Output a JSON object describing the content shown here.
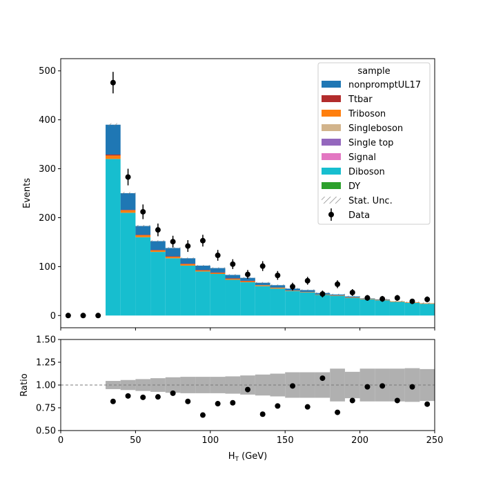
{
  "chart_data": [
    {
      "type": "bar",
      "stacked": true,
      "panel": "main",
      "xlabel": "",
      "ylabel": "Events",
      "xlim": [
        0,
        250
      ],
      "ylim": [
        -25,
        525
      ],
      "yticks": [
        0,
        100,
        200,
        300,
        400,
        500
      ],
      "xticks": [
        0,
        50,
        100,
        150,
        200,
        250
      ],
      "bin_edges": [
        30,
        40,
        50,
        60,
        70,
        80,
        90,
        100,
        110,
        120,
        130,
        140,
        150,
        160,
        170,
        180,
        190,
        200,
        210,
        220,
        230,
        240,
        250
      ],
      "legend": {
        "title": "sample",
        "placement": "top-right"
      },
      "series": [
        {
          "name": "DY",
          "color": "#2ca02c",
          "values": [
            0,
            0,
            0,
            0,
            0,
            0,
            0,
            0,
            0,
            0,
            0,
            0,
            0,
            0,
            0,
            0,
            0,
            0,
            0,
            0,
            0,
            0
          ]
        },
        {
          "name": "Diboson",
          "color": "#17becf",
          "values": [
            320,
            210,
            160,
            130,
            117,
            102,
            90,
            85,
            73,
            68,
            60,
            55,
            50,
            47,
            42,
            40,
            36,
            33,
            31,
            28,
            26,
            24
          ]
        },
        {
          "name": "Signal",
          "color": "#e377c2",
          "values": [
            0,
            0,
            0,
            0,
            0,
            0,
            0,
            0,
            0,
            0,
            0,
            0,
            0,
            0,
            0,
            0,
            0,
            0,
            0,
            0,
            0,
            0
          ]
        },
        {
          "name": "Single top",
          "color": "#9467bd",
          "values": [
            0,
            0,
            0,
            0,
            0,
            0,
            0,
            0,
            0,
            0,
            0,
            0,
            0,
            0,
            0,
            0,
            0,
            0,
            0,
            0,
            0,
            0
          ]
        },
        {
          "name": "Singleboson",
          "color": "#d2b48c",
          "values": [
            0,
            0,
            0,
            0,
            0,
            0,
            0,
            0,
            0,
            0,
            0,
            0,
            0,
            0,
            0,
            0,
            0,
            0,
            0,
            0,
            0,
            0
          ]
        },
        {
          "name": "Triboson",
          "color": "#ff7f0e",
          "values": [
            7,
            5,
            4,
            3,
            3,
            3,
            2,
            2,
            2,
            2,
            2,
            2,
            1,
            1,
            1,
            1,
            1,
            1,
            1,
            1,
            1,
            1
          ]
        },
        {
          "name": "Ttbar",
          "color": "#b22c2c",
          "values": [
            2,
            1,
            1,
            1,
            1,
            1,
            1,
            1,
            1,
            1,
            0,
            0,
            0,
            0,
            0,
            0,
            0,
            0,
            0,
            0,
            0,
            0
          ]
        },
        {
          "name": "nonpromptUL17",
          "color": "#1f77b4",
          "values": [
            61,
            34,
            18,
            18,
            17,
            11,
            9,
            9,
            7,
            6,
            5,
            5,
            4,
            4,
            3,
            2,
            2,
            1,
            1,
            0,
            0,
            0
          ]
        }
      ],
      "totals": [
        390,
        250,
        183,
        152,
        138,
        117,
        102,
        97,
        83,
        77,
        67,
        62,
        55,
        52,
        46,
        43,
        39,
        35,
        33,
        29,
        27,
        25
      ],
      "stat_unc_label": "Stat. Unc.",
      "data": {
        "name": "Data",
        "x": [
          5,
          15,
          25,
          35,
          45,
          55,
          65,
          75,
          85,
          95,
          105,
          115,
          125,
          135,
          145,
          155,
          165,
          175,
          185,
          195,
          205,
          215,
          225,
          235,
          245
        ],
        "y": [
          0,
          0,
          0,
          476,
          283,
          212,
          175,
          151,
          142,
          153,
          123,
          105,
          84,
          101,
          82,
          59,
          71,
          44,
          64,
          47,
          36,
          34,
          36,
          29,
          33
        ],
        "err": [
          0,
          0,
          0,
          22,
          17,
          15,
          13,
          12,
          12,
          12,
          11,
          10,
          9,
          10,
          9,
          8,
          8,
          7,
          8,
          7,
          6,
          6,
          6,
          5,
          6
        ]
      }
    },
    {
      "type": "scatter",
      "panel": "ratio",
      "xlabel": "H$_T$ (GeV)",
      "ylabel": "Ratio",
      "xlim": [
        0,
        250
      ],
      "ylim": [
        0.5,
        1.5
      ],
      "yticks": [
        0.5,
        0.75,
        1.0,
        1.25,
        1.5
      ],
      "xticks": [
        0,
        50,
        100,
        150,
        200,
        250
      ],
      "reference_line": 1.0,
      "unc_band": {
        "bin_edges": [
          30,
          40,
          50,
          60,
          70,
          80,
          90,
          100,
          110,
          120,
          130,
          140,
          150,
          160,
          170,
          180,
          190,
          200,
          210,
          220,
          230,
          240,
          250
        ],
        "low": [
          0.955,
          0.945,
          0.935,
          0.925,
          0.915,
          0.91,
          0.91,
          0.91,
          0.905,
          0.895,
          0.885,
          0.875,
          0.86,
          0.86,
          0.86,
          0.82,
          0.855,
          0.82,
          0.82,
          0.82,
          0.815,
          0.825
        ],
        "high": [
          1.045,
          1.055,
          1.065,
          1.075,
          1.085,
          1.09,
          1.09,
          1.09,
          1.095,
          1.105,
          1.115,
          1.125,
          1.14,
          1.14,
          1.14,
          1.18,
          1.145,
          1.18,
          1.18,
          1.18,
          1.185,
          1.175
        ]
      },
      "x": [
        35,
        45,
        55,
        65,
        75,
        85,
        95,
        105,
        115,
        125,
        135,
        145,
        155,
        165,
        175,
        185,
        195,
        205,
        215,
        225,
        235,
        245
      ],
      "y": [
        0.82,
        0.88,
        0.865,
        0.87,
        0.91,
        0.82,
        0.67,
        0.795,
        0.805,
        0.95,
        0.68,
        0.77,
        0.99,
        0.76,
        1.075,
        0.7,
        0.83,
        0.98,
        0.99,
        0.83,
        0.98,
        0.79
      ]
    }
  ],
  "tick_text": {
    "main_y": [
      "0",
      "100",
      "200",
      "300",
      "400",
      "500"
    ],
    "x": [
      "0",
      "50",
      "100",
      "150",
      "200",
      "250"
    ],
    "ratio_y": [
      "0.50",
      "0.75",
      "1.00",
      "1.25",
      "1.50"
    ]
  },
  "axis_titles": {
    "main_y": "Events",
    "ratio_y": "Ratio",
    "x_main": "H",
    "x_sub": "T",
    "x_rest": " (GeV)"
  },
  "legend": {
    "title": "sample",
    "entries": [
      {
        "label": "nonpromptUL17",
        "kind": "patch",
        "color": "#1f77b4"
      },
      {
        "label": "Ttbar",
        "kind": "patch",
        "color": "#b22c2c"
      },
      {
        "label": "Triboson",
        "kind": "patch",
        "color": "#ff7f0e"
      },
      {
        "label": "Singleboson",
        "kind": "patch",
        "color": "#d2b48c"
      },
      {
        "label": "Single top",
        "kind": "patch",
        "color": "#9467bd"
      },
      {
        "label": "Signal",
        "kind": "patch",
        "color": "#e377c2"
      },
      {
        "label": "Diboson",
        "kind": "patch",
        "color": "#17becf"
      },
      {
        "label": "DY",
        "kind": "patch",
        "color": "#2ca02c"
      },
      {
        "label": "Stat. Unc.",
        "kind": "hatch",
        "color": "#777777"
      },
      {
        "label": "Data",
        "kind": "errorbar",
        "color": "#000000"
      }
    ]
  },
  "colors": {
    "unc_band": "#b0b0b0",
    "data_marker": "#000000",
    "reference_line": "#777777"
  }
}
